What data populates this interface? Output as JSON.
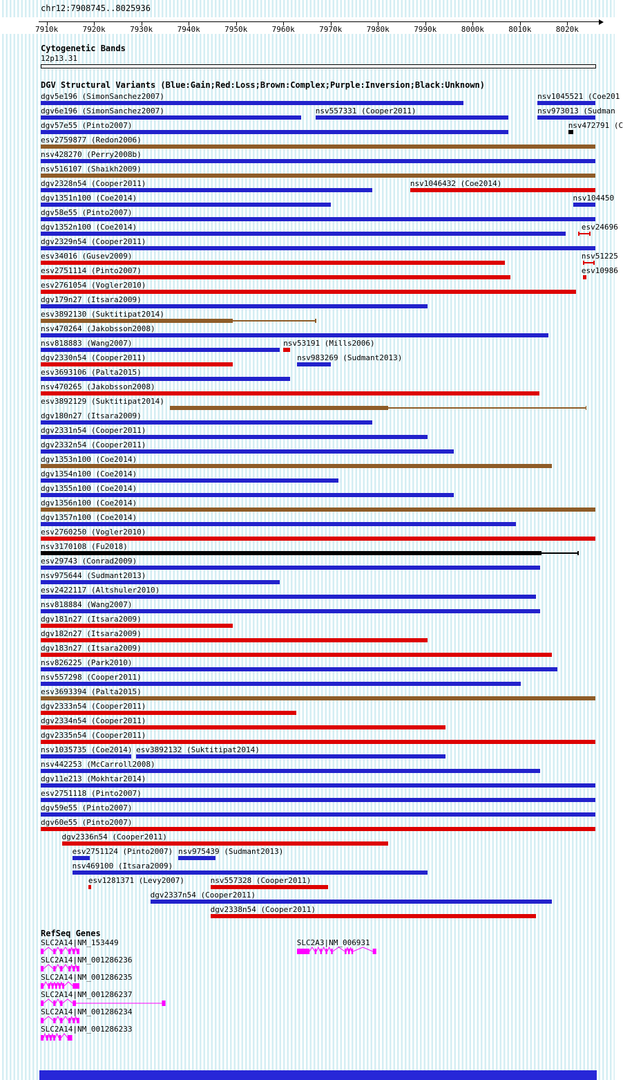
{
  "chart_data": {
    "type": "genomic-interval-tracks",
    "region_label": "chr12:7908745..8025936",
    "axis": {
      "unit": "kb",
      "start_kb": 7908.745,
      "end_kb": 8025.936,
      "ticks": [
        {
          "label": "7910k",
          "kb": 7910
        },
        {
          "label": "7920k",
          "kb": 7920
        },
        {
          "label": "7930k",
          "kb": 7930
        },
        {
          "label": "7940k",
          "kb": 7940
        },
        {
          "label": "7950k",
          "kb": 7950
        },
        {
          "label": "7960k",
          "kb": 7960
        },
        {
          "label": "7970k",
          "kb": 7970
        },
        {
          "label": "7980k",
          "kb": 7980
        },
        {
          "label": "7990k",
          "kb": 7990
        },
        {
          "label": "8000k",
          "kb": 8000
        },
        {
          "label": "8010k",
          "kb": 8010
        },
        {
          "label": "8020k",
          "kb": 8020
        }
      ]
    },
    "cytobands": {
      "header": "Cytogenetic Bands",
      "band": "12p13.31"
    },
    "dgv": {
      "header": "DGV Structural Variants (Blue:Gain;Red:Loss;Brown:Complex;Purple:Inversion;Black:Unknown)",
      "legend": {
        "Blue": "Gain",
        "Red": "Loss",
        "Brown": "Complex",
        "Purple": "Inversion",
        "Black": "Unknown"
      },
      "palette": {
        "gain": "#2222cc",
        "loss": "#dd0000",
        "complex": "#8e5c28",
        "inversion": "#7a007a",
        "unknown": "#000000"
      },
      "rows": [
        [
          {
            "label": "dgv5e196 (SimonSanchez2007)",
            "type": "gain",
            "start": 7908.75,
            "end": 7998.1
          },
          {
            "label": "nsv1045521 (Coe201",
            "type": "gain",
            "start": 8013.7,
            "end": 8025.9
          }
        ],
        [
          {
            "label": "dgv6e196 (SimonSanchez2007)",
            "type": "gain",
            "start": 7908.75,
            "end": 7963.8
          },
          {
            "label": "nsv557331 (Cooper2011)",
            "type": "gain",
            "start": 7966.8,
            "end": 8007.6
          },
          {
            "label": "nsv973013 (Sudman",
            "type": "gain",
            "start": 8013.7,
            "end": 8025.9
          }
        ],
        [
          {
            "label": "dgv57e55 (Pinto2007)",
            "type": "gain",
            "start": 7908.75,
            "end": 8007.6
          },
          {
            "label": "nsv472791 (C",
            "type": "unknown",
            "start": 8020.2,
            "end": 8021.2
          }
        ],
        [
          {
            "label": "esv2759877 (Redon2006)",
            "type": "complex",
            "start": 7908.75,
            "end": 8025.9
          }
        ],
        [
          {
            "label": "nsv428270 (Perry2008b)",
            "type": "gain",
            "start": 7908.75,
            "end": 8025.9
          }
        ],
        [
          {
            "label": "nsv516107 (Shaikh2009)",
            "type": "complex",
            "start": 7908.75,
            "end": 8025.9
          }
        ],
        [
          {
            "label": "dgv2328n54 (Cooper2011)",
            "type": "gain",
            "start": 7908.75,
            "end": 7978.8
          },
          {
            "label": "nsv1046432 (Coe2014)",
            "type": "loss",
            "start": 7986.8,
            "end": 8025.9
          }
        ],
        [
          {
            "label": "dgv1351n100 (Coe2014)",
            "type": "gain",
            "start": 7908.75,
            "end": 7970.1
          },
          {
            "label": "nsv104450",
            "type": "gain",
            "start": 8021.2,
            "end": 8025.9
          }
        ],
        [
          {
            "label": "dgv58e55 (Pinto2007)",
            "type": "gain",
            "start": 7908.75,
            "end": 8025.9
          }
        ],
        [
          {
            "label": "dgv1352n100 (Coe2014)",
            "type": "gain",
            "start": 7908.75,
            "end": 8019.7
          },
          {
            "label": "esv24696",
            "type": "loss",
            "start": 8022.3,
            "end": 8024.9,
            "lx": 8023.0,
            "style": "ibeam"
          }
        ],
        [
          {
            "label": "dgv2329n54 (Cooper2011)",
            "type": "gain",
            "start": 7908.75,
            "end": 8025.9
          }
        ],
        [
          {
            "label": "esv34016 (Gusev2009)",
            "type": "loss",
            "start": 7908.75,
            "end": 8006.8
          },
          {
            "label": "nsv51225",
            "type": "loss",
            "start": 8023.3,
            "end": 8025.8,
            "lx": 8023.0,
            "style": "ibeam"
          }
        ],
        [
          {
            "label": "esv2751114 (Pinto2007)",
            "type": "loss",
            "start": 7908.75,
            "end": 8008.0
          },
          {
            "label": "esv10986",
            "type": "loss",
            "start": 8023.3,
            "end": 8024.1,
            "lx": 8023.0
          }
        ],
        [
          {
            "label": "esv2761054 (Vogler2010)",
            "type": "loss",
            "start": 7908.75,
            "end": 8021.9
          }
        ],
        [
          {
            "label": "dgv179n27 (Itsara2009)",
            "type": "gain",
            "start": 7908.75,
            "end": 7990.5
          }
        ],
        [
          {
            "label": "esv3892130 (Suktitipat2014)",
            "type": "complex",
            "start": 7908.75,
            "end": 7949.3,
            "thin": 7966.9
          }
        ],
        [
          {
            "label": "nsv470264 (Jakobsson2008)",
            "type": "gain",
            "start": 7908.75,
            "end": 8016.0
          }
        ],
        [
          {
            "label": "nsv818883 (Wang2007)",
            "type": "gain",
            "start": 7908.75,
            "end": 7959.2
          },
          {
            "label": "nsv53191 (Mills2006)",
            "type": "loss",
            "start": 7960.0,
            "end": 7961.4
          }
        ],
        [
          {
            "label": "dgv2330n54 (Cooper2011)",
            "type": "loss",
            "start": 7908.75,
            "end": 7949.3
          },
          {
            "label": "nsv983269 (Sudmant2013)",
            "type": "gain",
            "start": 7962.9,
            "end": 7970.1
          }
        ],
        [
          {
            "label": "esv3693106 (Palta2015)",
            "type": "gain",
            "start": 7908.75,
            "end": 7961.4
          }
        ],
        [
          {
            "label": "nsv470265 (Jakobsson2008)",
            "type": "loss",
            "start": 7908.75,
            "end": 8014.1
          }
        ],
        [
          {
            "label": "esv3892129 (Suktitipat2014)",
            "type": "complex",
            "start": 7936.1,
            "end": 7982.2,
            "thin": 8024.0,
            "lx": 7908.75
          }
        ],
        [
          {
            "label": "dgv180n27 (Itsara2009)",
            "type": "gain",
            "start": 7908.75,
            "end": 7978.8
          }
        ],
        [
          {
            "label": "dgv2331n54 (Cooper2011)",
            "type": "gain",
            "start": 7908.75,
            "end": 7990.5
          }
        ],
        [
          {
            "label": "dgv2332n54 (Cooper2011)",
            "type": "gain",
            "start": 7908.75,
            "end": 7996.0
          }
        ],
        [
          {
            "label": "dgv1353n100 (Coe2014)",
            "type": "complex",
            "start": 7908.75,
            "end": 8016.8
          }
        ],
        [
          {
            "label": "dgv1354n100 (Coe2014)",
            "type": "gain",
            "start": 7908.75,
            "end": 7971.6
          }
        ],
        [
          {
            "label": "dgv1355n100 (Coe2014)",
            "type": "gain",
            "start": 7908.75,
            "end": 7996.0
          }
        ],
        [
          {
            "label": "dgv1356n100 (Coe2014)",
            "type": "complex",
            "start": 7908.75,
            "end": 8025.9
          }
        ],
        [
          {
            "label": "dgv1357n100 (Coe2014)",
            "type": "gain",
            "start": 7908.75,
            "end": 8009.2
          }
        ],
        [
          {
            "label": "esv2760250 (Vogler2010)",
            "type": "loss",
            "start": 7908.75,
            "end": 8025.9
          }
        ],
        [
          {
            "label": "nsv3170108 (Fu2018)",
            "type": "unknown",
            "start": 7908.75,
            "end": 8014.6,
            "thin": 8022.3
          }
        ],
        [
          {
            "label": "esv29743 (Conrad2009)",
            "type": "gain",
            "start": 7908.75,
            "end": 8014.3
          }
        ],
        [
          {
            "label": "nsv975644 (Sudmant2013)",
            "type": "gain",
            "start": 7908.75,
            "end": 7959.2
          }
        ],
        [
          {
            "label": "esv2422117 (Altshuler2010)",
            "type": "gain",
            "start": 7908.75,
            "end": 8013.4
          }
        ],
        [
          {
            "label": "nsv818884 (Wang2007)",
            "type": "gain",
            "start": 7908.75,
            "end": 8014.3
          }
        ],
        [
          {
            "label": "dgv181n27 (Itsara2009)",
            "type": "loss",
            "start": 7908.75,
            "end": 7949.3
          }
        ],
        [
          {
            "label": "dgv182n27 (Itsara2009)",
            "type": "loss",
            "start": 7908.75,
            "end": 7990.5
          }
        ],
        [
          {
            "label": "dgv183n27 (Itsara2009)",
            "type": "loss",
            "start": 7908.75,
            "end": 8016.8
          }
        ],
        [
          {
            "label": "nsv826225 (Park2010)",
            "type": "gain",
            "start": 7908.75,
            "end": 8017.9
          }
        ],
        [
          {
            "label": "nsv557298 (Cooper2011)",
            "type": "gain",
            "start": 7908.75,
            "end": 8010.2
          }
        ],
        [
          {
            "label": "esv3693394 (Palta2015)",
            "type": "complex",
            "start": 7908.75,
            "end": 8025.9
          }
        ],
        [
          {
            "label": "dgv2333n54 (Cooper2011)",
            "type": "loss",
            "start": 7908.75,
            "end": 7962.8
          }
        ],
        [
          {
            "label": "dgv2334n54 (Cooper2011)",
            "type": "loss",
            "start": 7908.75,
            "end": 7994.2
          }
        ],
        [
          {
            "label": "dgv2335n54 (Cooper2011)",
            "type": "loss",
            "start": 7908.75,
            "end": 8025.9
          }
        ],
        [
          {
            "label": "nsv1035735 (Coe2014)",
            "type": "gain",
            "start": 7908.75,
            "end": 7927.8
          },
          {
            "label": "esv3892132 (Suktitipat2014)",
            "type": "gain",
            "start": 7928.9,
            "end": 7994.2
          }
        ],
        [
          {
            "label": "nsv442253 (McCarroll2008)",
            "type": "gain",
            "start": 7908.75,
            "end": 8014.3
          }
        ],
        [
          {
            "label": "dgv11e213 (Mokhtar2014)",
            "type": "gain",
            "start": 7908.75,
            "end": 8025.9
          }
        ],
        [
          {
            "label": "esv2751118 (Pinto2007)",
            "type": "gain",
            "start": 7908.75,
            "end": 8025.9
          }
        ],
        [
          {
            "label": "dgv59e55 (Pinto2007)",
            "type": "gain",
            "start": 7908.75,
            "end": 8025.9
          }
        ],
        [
          {
            "label": "dgv60e55 (Pinto2007)",
            "type": "loss",
            "start": 7908.75,
            "end": 8025.9
          }
        ],
        [
          {
            "label": "dgv2336n54 (Cooper2011)",
            "type": "loss",
            "start": 7913.2,
            "end": 7982.2
          }
        ],
        [
          {
            "label": "esv2751124 (Pinto2007)",
            "type": "gain",
            "start": 7915.4,
            "end": 7919.1
          },
          {
            "label": "nsv975439 (Sudmant2013)",
            "type": "gain",
            "start": 7937.8,
            "end": 7945.6
          }
        ],
        [
          {
            "label": "nsv469100 (Itsara2009)",
            "type": "gain",
            "start": 7915.4,
            "end": 7990.5
          }
        ],
        [
          {
            "label": "esv1281371 (Levy2007)",
            "type": "loss",
            "start": 7918.8,
            "end": 7919.4
          },
          {
            "label": "nsv557328 (Cooper2011)",
            "type": "loss",
            "start": 7944.6,
            "end": 7969.4
          }
        ],
        [
          {
            "label": "dgv2337n54 (Cooper2011)",
            "type": "gain",
            "start": 7931.9,
            "end": 8016.8
          }
        ],
        [
          {
            "label": "dgv2338n54 (Cooper2011)",
            "type": "loss",
            "start": 7944.6,
            "end": 8013.4
          }
        ]
      ]
    },
    "refseq": {
      "header": "RefSeq Genes",
      "color": "#ff00ff",
      "rows": [
        [
          {
            "label": "SLC2A14|NM_153449",
            "start": 7908.75,
            "end": 7916.9,
            "exons": [
              [
                7908.75,
                7909.35
              ],
              [
                7911.4,
                7911.9
              ],
              [
                7912.85,
                7913.35
              ],
              [
                7914.6,
                7915.05
              ],
              [
                7915.5,
                7915.95
              ],
              [
                7916.35,
                7916.9
              ]
            ]
          },
          {
            "label": "SLC2A3|NM_006931",
            "start": 7962.85,
            "end": 7979.6,
            "exons": [
              [
                7962.85,
                7965.5
              ],
              [
                7966.6,
                7966.95
              ],
              [
                7967.75,
                7968.1
              ],
              [
                7968.9,
                7969.25
              ],
              [
                7970.05,
                7970.4
              ],
              [
                7972.95,
                7973.3
              ],
              [
                7973.65,
                7974.0
              ],
              [
                7974.35,
                7974.7
              ],
              [
                7978.85,
                7979.6
              ]
            ]
          }
        ],
        [
          {
            "label": "SLC2A14|NM_001286236",
            "start": 7908.75,
            "end": 7916.9,
            "exons": [
              [
                7908.75,
                7909.35
              ],
              [
                7911.4,
                7911.9
              ],
              [
                7912.85,
                7913.35
              ],
              [
                7914.6,
                7915.05
              ],
              [
                7915.5,
                7915.95
              ],
              [
                7916.35,
                7916.9
              ]
            ]
          }
        ],
        [
          {
            "label": "SLC2A14|NM_001286235",
            "start": 7908.75,
            "end": 7916.9,
            "exons": [
              [
                7908.75,
                7909.35
              ],
              [
                7910.3,
                7910.7
              ],
              [
                7911.05,
                7911.45
              ],
              [
                7911.8,
                7912.2
              ],
              [
                7912.55,
                7912.95
              ],
              [
                7913.3,
                7913.7
              ],
              [
                7915.5,
                7916.9
              ]
            ]
          }
        ],
        [
          {
            "label": "SLC2A14|NM_001286237",
            "start": 7908.75,
            "end": 7935.1,
            "exons": [
              [
                7908.75,
                7909.35
              ],
              [
                7911.4,
                7911.9
              ],
              [
                7912.85,
                7913.35
              ],
              [
                7915.5,
                7916.2
              ],
              [
                7934.35,
                7935.1
              ]
            ]
          }
        ],
        [
          {
            "label": "SLC2A14|NM_001286234",
            "start": 7908.75,
            "end": 7916.9,
            "exons": [
              [
                7908.75,
                7909.35
              ],
              [
                7911.4,
                7911.9
              ],
              [
                7912.85,
                7913.35
              ],
              [
                7914.6,
                7915.05
              ],
              [
                7915.5,
                7915.95
              ],
              [
                7916.35,
                7916.9
              ]
            ]
          }
        ],
        [
          {
            "label": "SLC2A14|NM_001286233",
            "start": 7908.75,
            "end": 7915.4,
            "exons": [
              [
                7908.75,
                7909.35
              ],
              [
                7909.9,
                7910.3
              ],
              [
                7910.65,
                7911.05
              ],
              [
                7911.4,
                7911.8
              ],
              [
                7912.55,
                7913.05
              ],
              [
                7914.4,
                7915.4
              ]
            ]
          }
        ]
      ]
    },
    "footer_bar_color": "#2727d8"
  }
}
